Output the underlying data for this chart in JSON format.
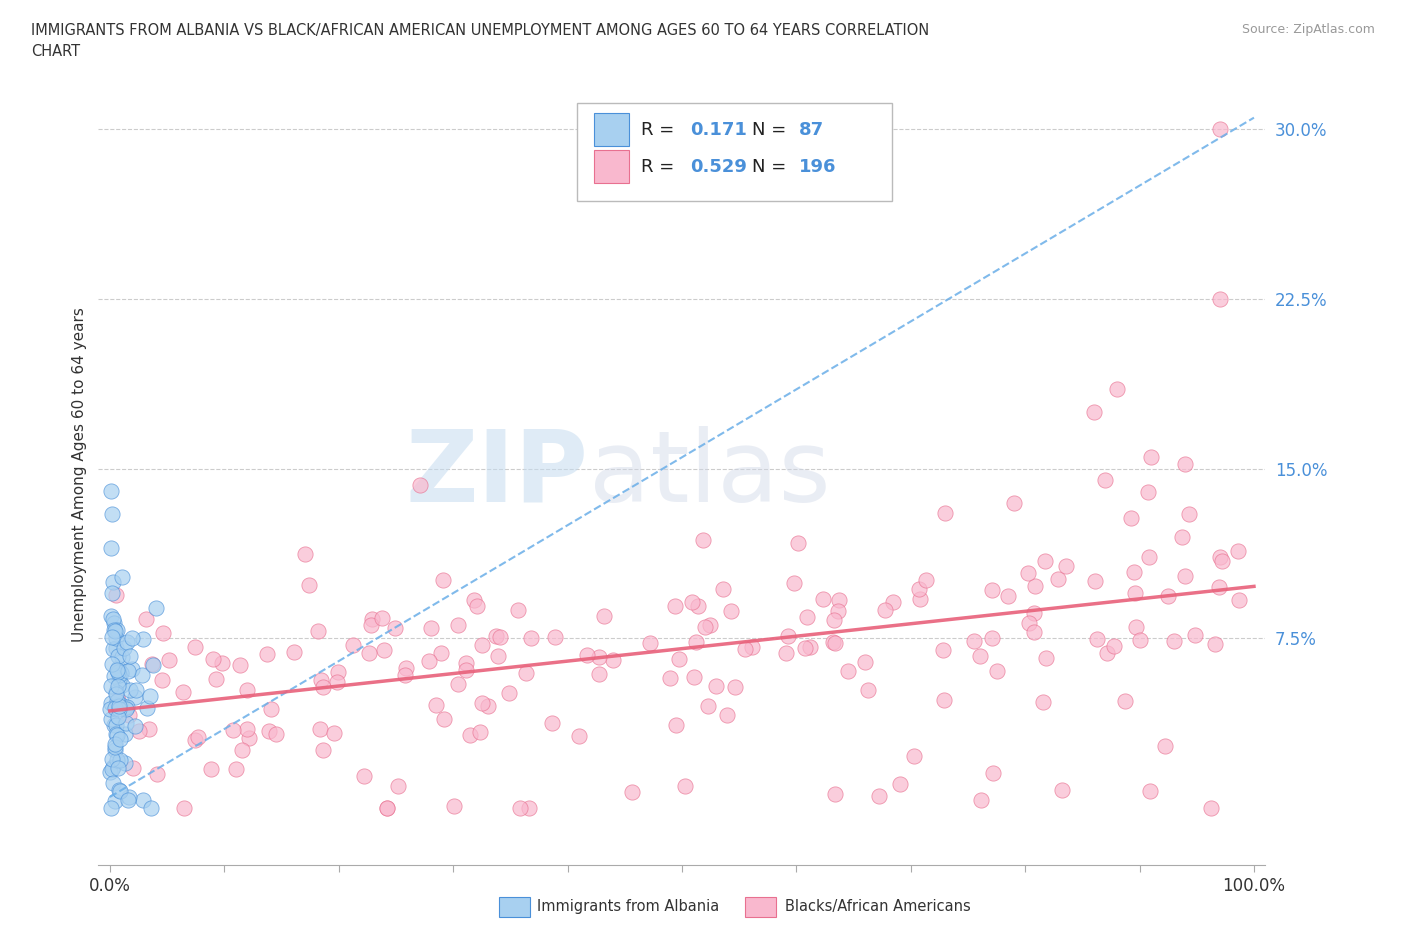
{
  "title_line1": "IMMIGRANTS FROM ALBANIA VS BLACK/AFRICAN AMERICAN UNEMPLOYMENT AMONG AGES 60 TO 64 YEARS CORRELATION",
  "title_line2": "CHART",
  "source_text": "Source: ZipAtlas.com",
  "ylabel": "Unemployment Among Ages 60 to 64 years",
  "xlim": [
    -0.01,
    1.01
  ],
  "ylim": [
    -0.025,
    0.32
  ],
  "yticks": [
    0.0,
    0.075,
    0.15,
    0.225,
    0.3
  ],
  "yticklabels": [
    "",
    "7.5%",
    "15.0%",
    "22.5%",
    "30.0%"
  ],
  "albania_color": "#A8D0F0",
  "albania_edge_color": "#4A90D9",
  "black_color": "#F9B8CE",
  "black_edge_color": "#E87090",
  "albania_trend_color": "#6AAEE8",
  "black_trend_color": "#E8607A",
  "legend_num_color": "#4A90D9",
  "legend_label_color": "#222222",
  "R_albania": 0.171,
  "N_albania": 87,
  "R_black": 0.529,
  "N_black": 196,
  "watermark_zip": "ZIP",
  "watermark_atlas": "atlas",
  "legend_label_albania": "Immigrants from Albania",
  "legend_label_black": "Blacks/African Americans",
  "background_color": "#ffffff",
  "grid_color": "#cccccc",
  "ytick_color": "#4A90D9",
  "xtick_color": "#333333",
  "dot_size": 120,
  "dot_alpha": 0.7,
  "trend_albania_slope": 0.3,
  "trend_albania_intercept": 0.005,
  "trend_black_slope": 0.055,
  "trend_black_intercept": 0.043
}
